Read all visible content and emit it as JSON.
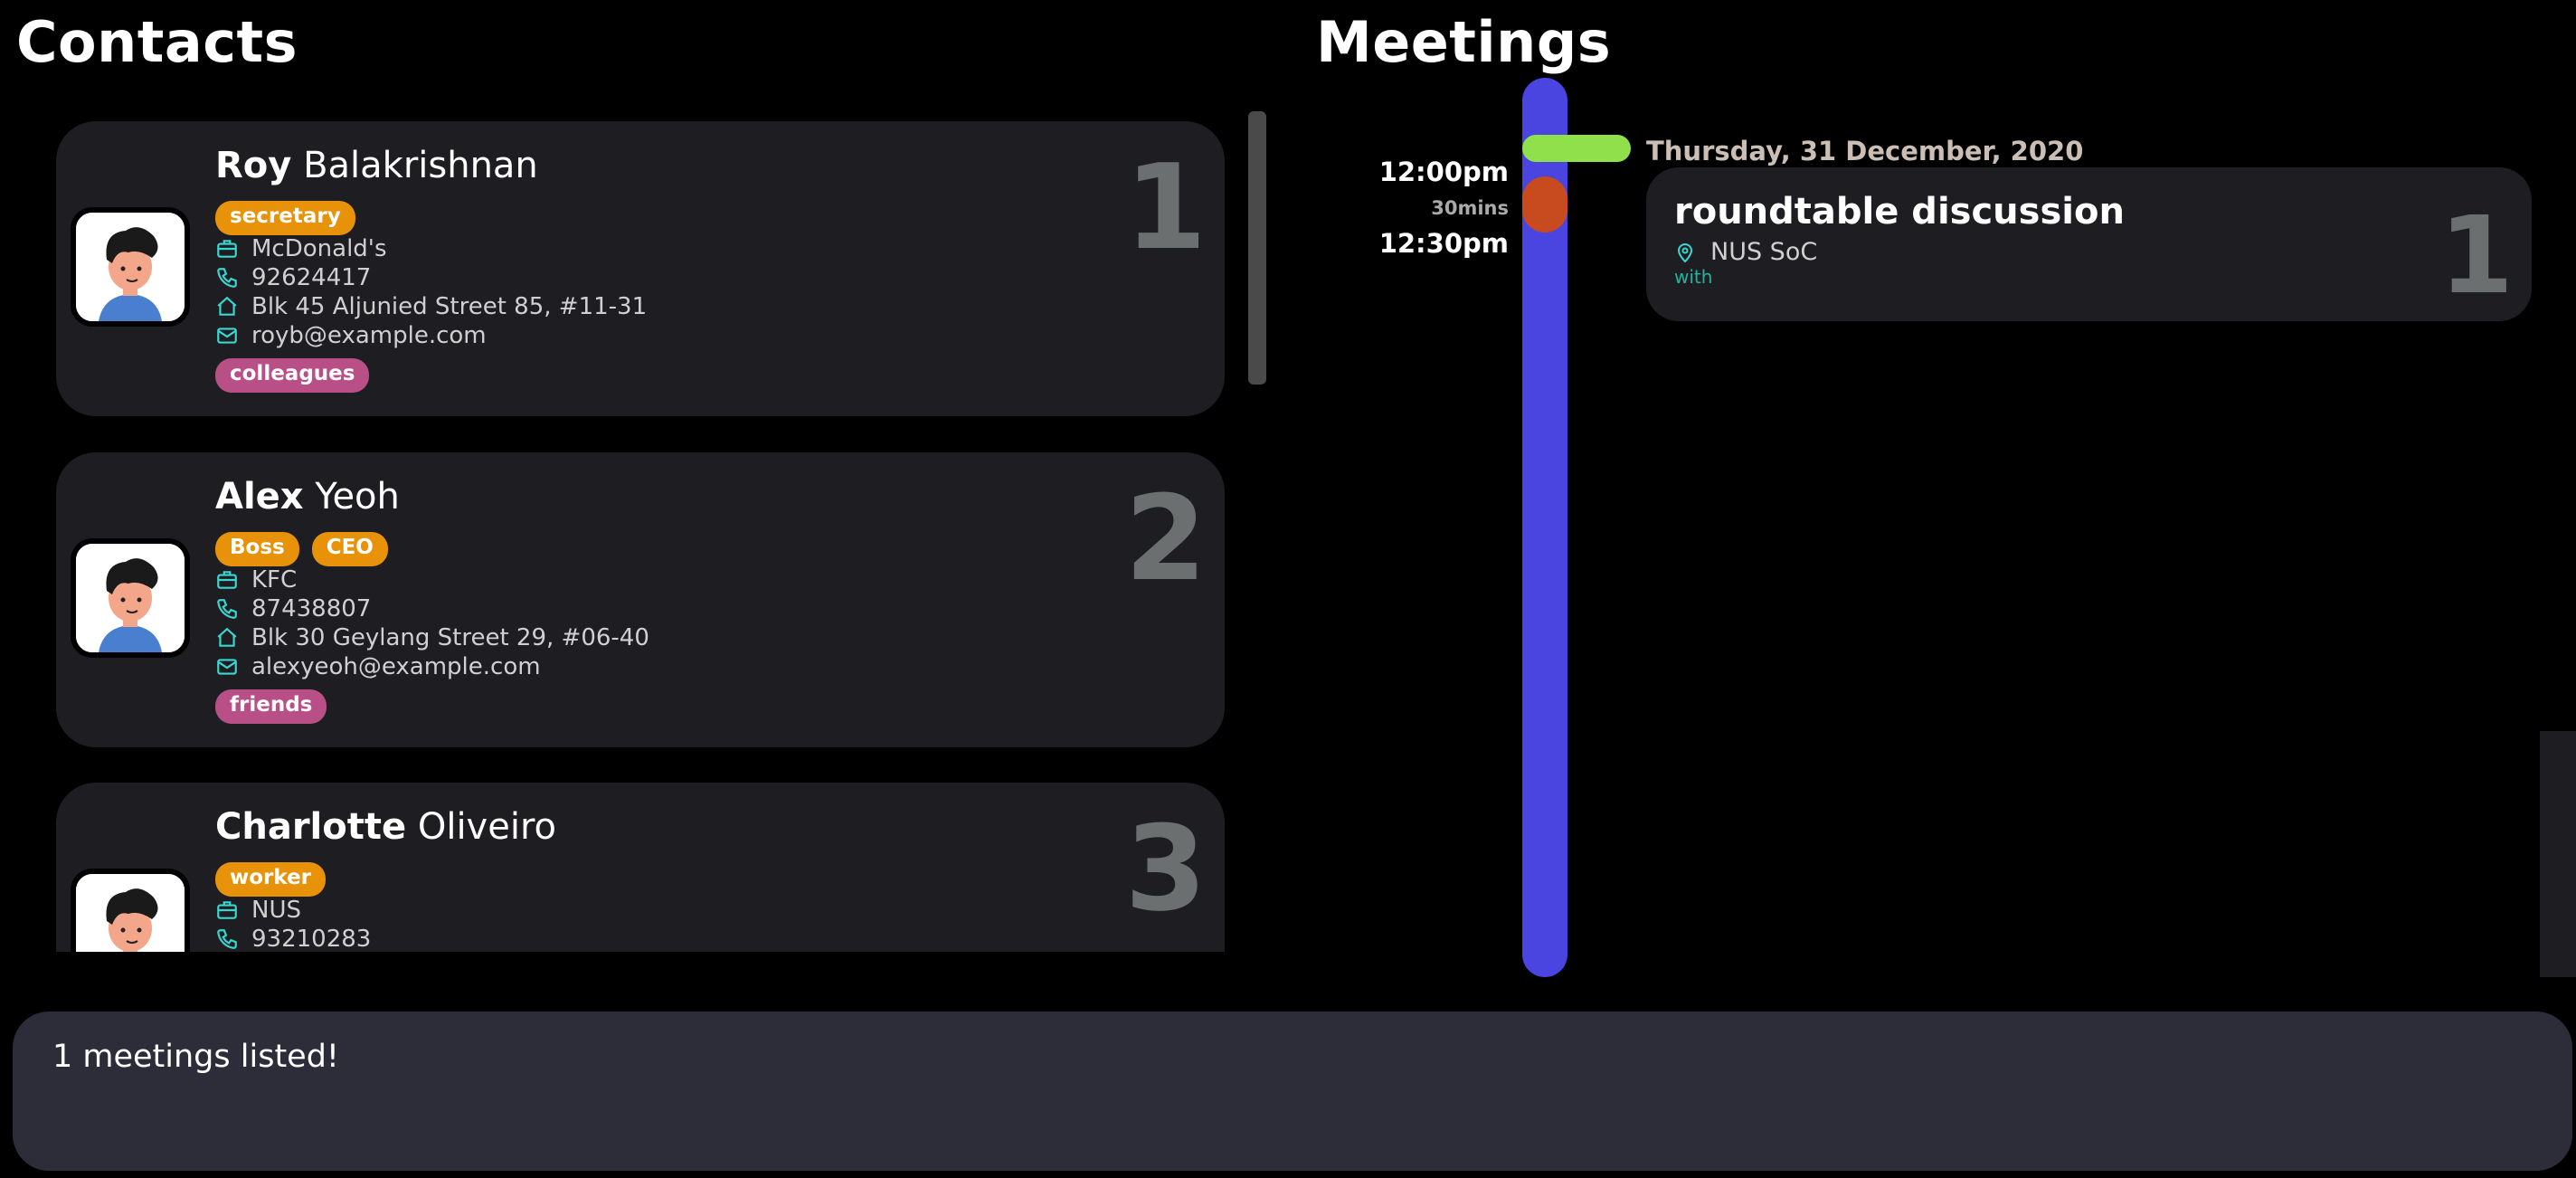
{
  "contacts": {
    "title": "Contacts",
    "items": [
      {
        "first": "Roy",
        "last": "Balakrishnan",
        "index": "1",
        "tags": [
          "secretary"
        ],
        "company": "McDonald's",
        "phone": "92624417",
        "address": "Blk 45 Aljunied Street 85, #11-31",
        "email": "royb@example.com",
        "groups": [
          "colleagues"
        ]
      },
      {
        "first": "Alex",
        "last": "Yeoh",
        "index": "2",
        "tags": [
          "Boss",
          "CEO"
        ],
        "company": "KFC",
        "phone": "87438807",
        "address": "Blk 30 Geylang Street 29, #06-40",
        "email": "alexyeoh@example.com",
        "groups": [
          "friends"
        ]
      },
      {
        "first": "Charlotte",
        "last": "Oliveiro",
        "index": "3",
        "tags": [
          "worker"
        ],
        "company": "NUS",
        "phone": "93210283"
      }
    ]
  },
  "meetings": {
    "title": "Meetings",
    "date_header": "Thursday, 31 December, 2020",
    "time_start": "12:00pm",
    "duration": "30mins",
    "time_end": "12:30pm",
    "items": [
      {
        "title": "roundtable discussion",
        "location": "NUS SoC",
        "with_label": "with",
        "index": "1"
      }
    ]
  },
  "result": {
    "message": "1 meetings listed!"
  },
  "colors": {
    "tag": "#e8920a",
    "group_tag": "#b84f86",
    "timeline": "#4a45e0",
    "date_marker": "#8fe04a",
    "meeting_marker": "#c84a1f",
    "icon": "#3ad6d0"
  }
}
